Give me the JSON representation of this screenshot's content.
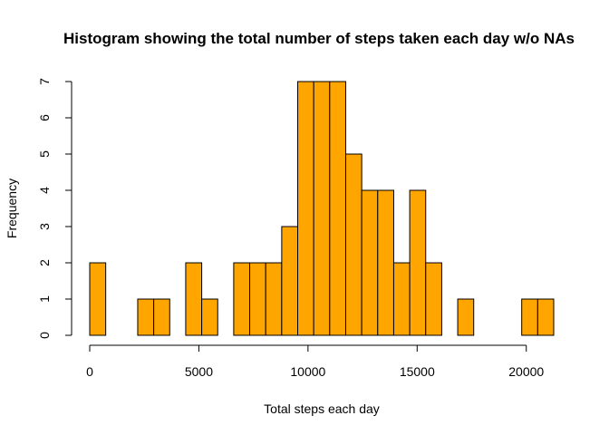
{
  "chart_data": {
    "type": "bar",
    "title": "Histogram showing the total number of steps taken each day w/o NAs",
    "xlabel": "Total steps each day",
    "ylabel": "Frequency",
    "bar_color": "#FFA500",
    "bin_width": 733,
    "bins": [
      {
        "start": 0,
        "end": 733,
        "count": 2
      },
      {
        "start": 733,
        "end": 1466,
        "count": 0
      },
      {
        "start": 1466,
        "end": 2199,
        "count": 0
      },
      {
        "start": 2199,
        "end": 2932,
        "count": 1
      },
      {
        "start": 2932,
        "end": 3665,
        "count": 1
      },
      {
        "start": 3665,
        "end": 4398,
        "count": 0
      },
      {
        "start": 4398,
        "end": 5131,
        "count": 2
      },
      {
        "start": 5131,
        "end": 5864,
        "count": 1
      },
      {
        "start": 5864,
        "end": 6597,
        "count": 0
      },
      {
        "start": 6597,
        "end": 7330,
        "count": 2
      },
      {
        "start": 7330,
        "end": 8063,
        "count": 2
      },
      {
        "start": 8063,
        "end": 8796,
        "count": 2
      },
      {
        "start": 8796,
        "end": 9529,
        "count": 3
      },
      {
        "start": 9529,
        "end": 10262,
        "count": 7
      },
      {
        "start": 10262,
        "end": 10995,
        "count": 7
      },
      {
        "start": 10995,
        "end": 11728,
        "count": 7
      },
      {
        "start": 11728,
        "end": 12461,
        "count": 5
      },
      {
        "start": 12461,
        "end": 13194,
        "count": 4
      },
      {
        "start": 13194,
        "end": 13927,
        "count": 4
      },
      {
        "start": 13927,
        "end": 14660,
        "count": 2
      },
      {
        "start": 14660,
        "end": 15393,
        "count": 4
      },
      {
        "start": 15393,
        "end": 16126,
        "count": 2
      },
      {
        "start": 16126,
        "end": 16859,
        "count": 0
      },
      {
        "start": 16859,
        "end": 17592,
        "count": 1
      },
      {
        "start": 17592,
        "end": 18325,
        "count": 0
      },
      {
        "start": 18325,
        "end": 19058,
        "count": 0
      },
      {
        "start": 19058,
        "end": 19791,
        "count": 0
      },
      {
        "start": 19791,
        "end": 20524,
        "count": 1
      },
      {
        "start": 20524,
        "end": 21257,
        "count": 1
      }
    ],
    "xlim": [
      0,
      21257
    ],
    "ylim": [
      0,
      7
    ],
    "x_ticks": [
      {
        "value": 0,
        "label": "0"
      },
      {
        "value": 5000,
        "label": "5000"
      },
      {
        "value": 10000,
        "label": "10000"
      },
      {
        "value": 15000,
        "label": "15000"
      },
      {
        "value": 20000,
        "label": "20000"
      }
    ],
    "y_ticks": [
      {
        "value": 0,
        "label": "0"
      },
      {
        "value": 1,
        "label": "1"
      },
      {
        "value": 2,
        "label": "2"
      },
      {
        "value": 3,
        "label": "3"
      },
      {
        "value": 4,
        "label": "4"
      },
      {
        "value": 5,
        "label": "5"
      },
      {
        "value": 6,
        "label": "6"
      },
      {
        "value": 7,
        "label": "7"
      }
    ],
    "grid": false,
    "legend": "none"
  }
}
